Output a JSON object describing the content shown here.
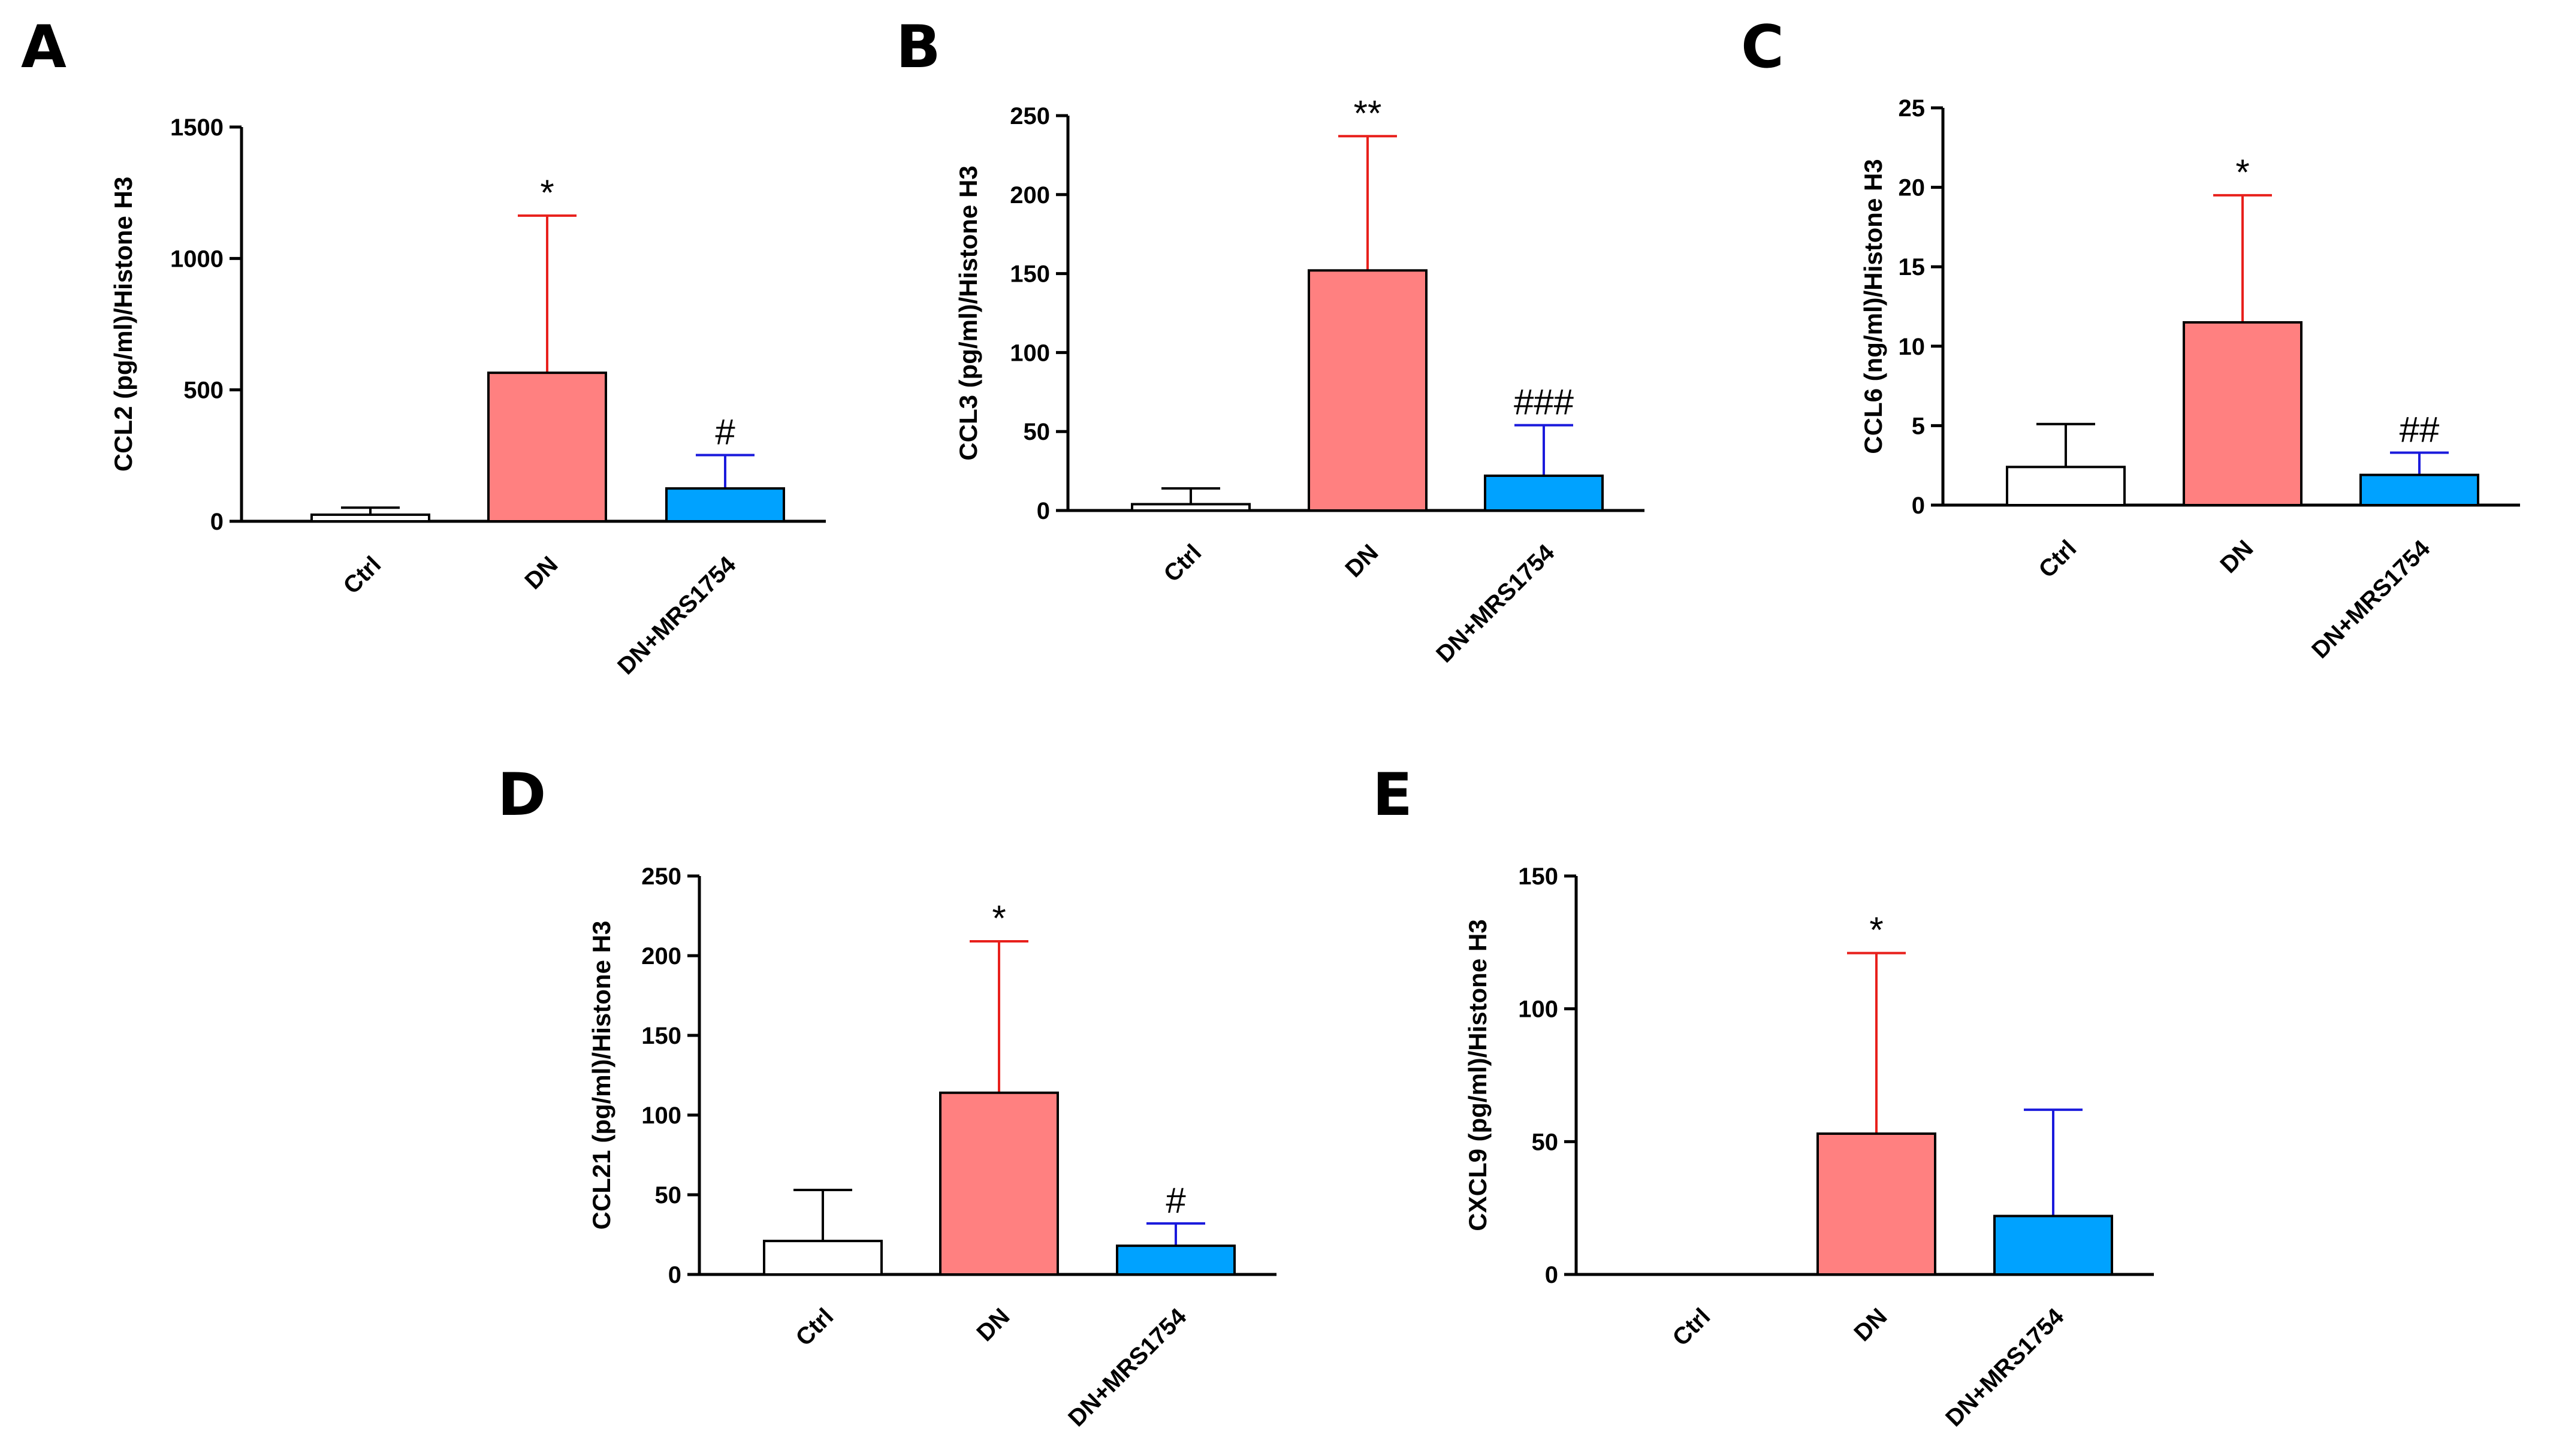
{
  "colors": {
    "ctrl_fill": "#ffffff",
    "ctrl_line": "#000000",
    "dn_fill": "#ff8080",
    "dn_error": "#e8201c",
    "mrs_fill": "#00a2ff",
    "mrs_error": "#1a1adc",
    "axis": "#000000"
  },
  "chart_data": [
    {
      "panel": "A",
      "type": "bar",
      "ylabel": "CCL2 (pg/ml)/Histone H3",
      "categories": [
        "Ctrl",
        "DN",
        "DN+MRS1754"
      ],
      "values": [
        25,
        565,
        125
      ],
      "errors": [
        27,
        598,
        127
      ],
      "annotations": [
        "",
        "*",
        "#"
      ],
      "ylim": [
        0,
        1500
      ],
      "yticks": [
        "0",
        "500",
        "1000",
        "1500"
      ],
      "grid": false
    },
    {
      "panel": "B",
      "type": "bar",
      "ylabel": "CCL3 (pg/ml)/Histone H3",
      "categories": [
        "Ctrl",
        "DN",
        "DN+MRS1754"
      ],
      "values": [
        4,
        152,
        22
      ],
      "errors": [
        10,
        85,
        32
      ],
      "annotations": [
        "",
        "**",
        "###"
      ],
      "ylim": [
        0,
        250
      ],
      "yticks": [
        "0",
        "50",
        "100",
        "150",
        "200",
        "250"
      ],
      "grid": false
    },
    {
      "panel": "C",
      "type": "bar",
      "ylabel": "CCL6 (ng/ml)/Histone H3",
      "categories": [
        "Ctrl",
        "DN",
        "DN+MRS1754"
      ],
      "values": [
        2.4,
        11.5,
        1.9
      ],
      "errors": [
        2.7,
        8.0,
        1.4
      ],
      "annotations": [
        "",
        "*",
        "##"
      ],
      "ylim": [
        0,
        25
      ],
      "yticks": [
        "0",
        "5",
        "10",
        "15",
        "20",
        "25"
      ],
      "grid": false
    },
    {
      "panel": "D",
      "type": "bar",
      "ylabel": "CCL21 (pg/ml)/Histone H3",
      "categories": [
        "Ctrl",
        "DN",
        "DN+MRS1754"
      ],
      "values": [
        21,
        114,
        18
      ],
      "errors": [
        32,
        95,
        14
      ],
      "annotations": [
        "",
        "*",
        "#"
      ],
      "ylim": [
        0,
        250
      ],
      "yticks": [
        "0",
        "50",
        "100",
        "150",
        "200",
        "250"
      ],
      "grid": false
    },
    {
      "panel": "E",
      "type": "bar",
      "ylabel": "CXCL9 (pg/ml)/Histone H3",
      "categories": [
        "Ctrl",
        "DN",
        "DN+MRS1754"
      ],
      "values": [
        0,
        53,
        22
      ],
      "errors": [
        0,
        68,
        40
      ],
      "annotations": [
        "",
        "*",
        ""
      ],
      "ylim": [
        0,
        150
      ],
      "yticks": [
        "0",
        "50",
        "100",
        "150"
      ],
      "grid": false
    }
  ]
}
